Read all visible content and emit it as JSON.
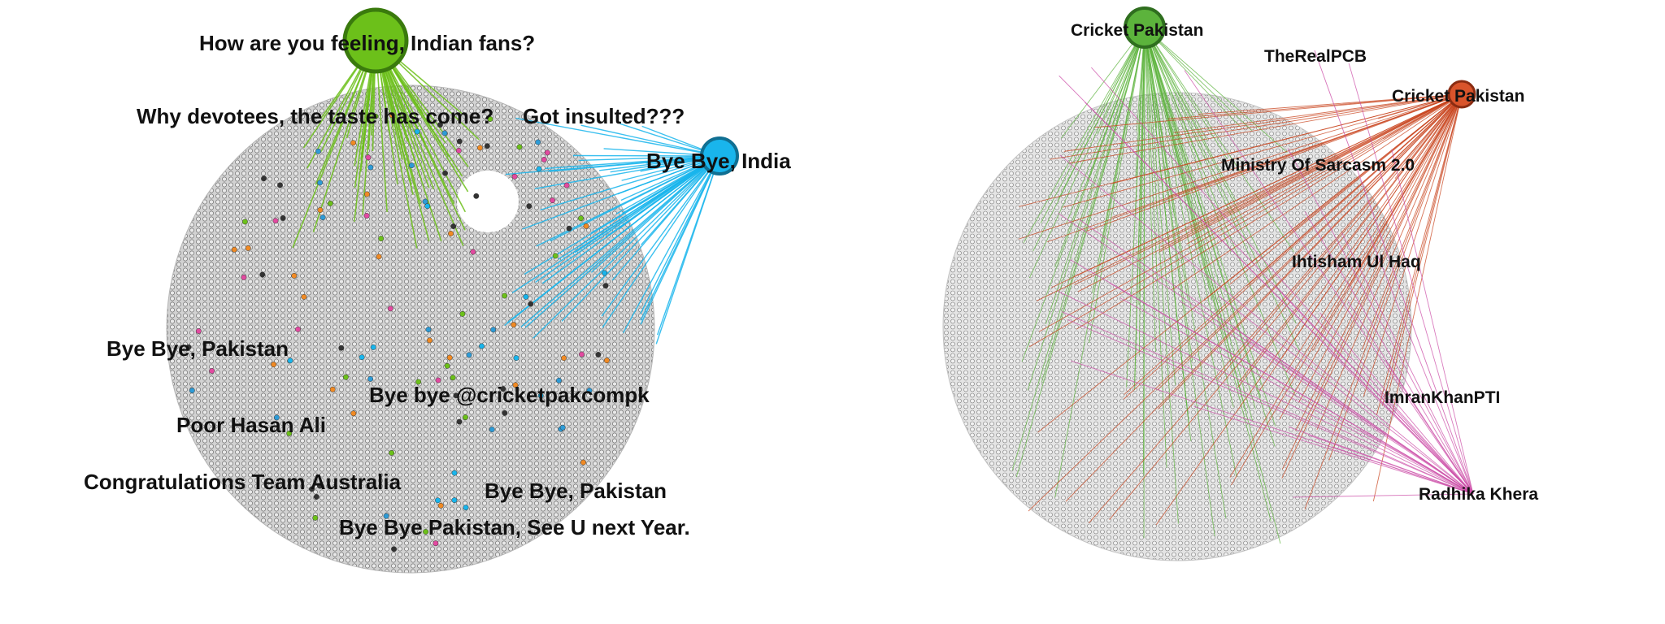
{
  "colors": {
    "background": "#ffffff",
    "cloud_fill": "#c9c9c9",
    "cloud_node_stroke": "#6e6e6e",
    "green_hub": "#6cc01a",
    "green_hub_stroke": "#3a7a0d",
    "blue_hub": "#19b5ec",
    "blue_hub_stroke": "#106f92",
    "green_hub_right": "#5cb33c",
    "green_hub_right_stroke": "#2f6e1f",
    "red_hub": "#d9542b",
    "red_hub_stroke": "#8a2c12",
    "green_edge": "#6cc01a",
    "blue_edge": "#19b5ec",
    "red_edge": "#c8431c",
    "pink_edge": "#cc4fa8",
    "label": "#111111"
  },
  "left_network": {
    "labels": [
      "How are you feeling, Indian fans?",
      "Why devotees, the taste has come?",
      "Got insulted???",
      "Bye Bye, India",
      "Bye Bye, Pakistan",
      "Bye bye @cricketpakcompk",
      "Poor Hasan Ali",
      "Congratulations Team Australia",
      "Bye Bye, Pakistan",
      "Bye Bye Pakistan, See U next Year."
    ]
  },
  "right_network": {
    "labels": [
      "Cricket Pakistan",
      "TheRealPCB",
      "Cricket Pakistan",
      "Ministry Of Sarcasm 2.0",
      "Ihtisham Ul Haq",
      "ImranKhanPTI",
      "Radhika Khera"
    ]
  }
}
